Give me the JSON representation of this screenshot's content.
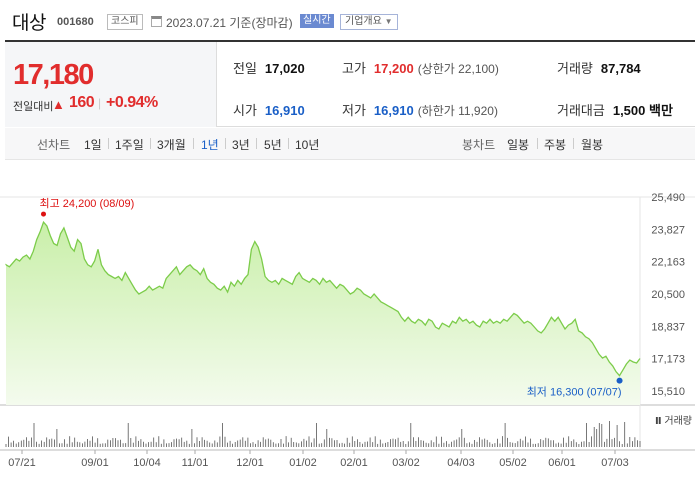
{
  "header": {
    "name": "대상",
    "code": "001680",
    "market": "코스피",
    "date_text": "2023.07.21 기준(장마감)",
    "realtime_label": "실시간",
    "company_info_label": "기업개요"
  },
  "summary": {
    "price": "17,180",
    "change_label": "전일대비",
    "change_value": "160",
    "change_percent": "+0.94%",
    "prev_close_label": "전일",
    "prev_close": "17,020",
    "high_label": "고가",
    "high": "17,200",
    "upper_limit": "(상한가 22,100)",
    "volume_label": "거래량",
    "volume": "87,784",
    "open_label": "시가",
    "open": "16,910",
    "low_label": "저가",
    "low": "16,910",
    "lower_limit": "(하한가 11,920)",
    "amount_label": "거래대금",
    "amount": "1,500 백만"
  },
  "period_bar": {
    "line_chart_label": "선차트",
    "periods": [
      "1일",
      "1주일",
      "3개월",
      "1년",
      "3년",
      "5년",
      "10년"
    ],
    "active_period": "1년",
    "candle_chart_label": "봉차트",
    "candles": [
      "일봉",
      "주봉",
      "월봉"
    ]
  },
  "chart_data": {
    "type": "area",
    "y_ticks": [
      "25,490",
      "23,827",
      "22,163",
      "20,500",
      "18,837",
      "17,173",
      "15,510"
    ],
    "ylim": [
      15510,
      25490
    ],
    "x_tick_labels": [
      "07/21",
      "09/01",
      "10/04",
      "11/01",
      "12/01",
      "01/02",
      "02/01",
      "03/02",
      "04/03",
      "05/02",
      "06/01",
      "07/03"
    ],
    "high_annotation": "최고 24,200 (08/09)",
    "low_annotation": "최저 16,300 (07/07)",
    "volume_label": "거래량",
    "colors": {
      "line": "#7ccc4a",
      "fill_top": "#c9efa9",
      "fill_bottom": "#f4fbee",
      "volume": "#555555",
      "high": "#dd1111",
      "low": "#1a5fc7"
    },
    "series": [
      {
        "values": [
          22000,
          21900,
          22100,
          22300,
          22200,
          22400,
          22500,
          22300,
          22700,
          23300,
          23700,
          24200,
          24000,
          23500,
          23100,
          23000,
          23600,
          23900,
          23400,
          22900,
          22700,
          23300,
          23100,
          22300,
          22000,
          21900,
          22200,
          22800,
          22000,
          21700,
          21500,
          21400,
          21300,
          21400,
          21200,
          21600,
          21300,
          21000,
          20700,
          20500,
          20600,
          20700,
          20900,
          20700,
          20800,
          20900,
          20800,
          21300,
          21500,
          21700,
          21900,
          21500,
          21700,
          21900,
          22000,
          21800,
          21700,
          21500,
          21800,
          21300,
          21100,
          21000,
          20800,
          20700,
          20900,
          20600,
          21100,
          20900,
          21200,
          21000,
          21300,
          21500,
          22800,
          23200,
          22900,
          22300,
          21400,
          21200,
          21100,
          21200,
          21000,
          21300,
          21200,
          21100,
          21000,
          21400,
          21600,
          21300,
          21200,
          21100,
          21300,
          21200,
          21000,
          21300,
          21100,
          21200,
          21000,
          20800,
          21000,
          20900,
          20700,
          20500,
          20600,
          20800,
          20700,
          20500,
          20400,
          20300,
          20500,
          20300,
          20100,
          20000,
          19900,
          19800,
          19700,
          19600,
          19300,
          19100,
          19300,
          19100,
          19000,
          19200,
          19100,
          18900,
          19200,
          19100,
          18800,
          18700,
          19000,
          18900,
          18800,
          19100,
          19000,
          19300,
          19100,
          19200,
          19000,
          19100,
          18900,
          18800,
          19100,
          19000,
          19200,
          19000,
          19100,
          19000,
          19200,
          19100,
          19300,
          19500,
          19400,
          19200,
          19000,
          19100,
          19000,
          18800,
          18600,
          18500,
          18700,
          19000,
          19300,
          19100,
          19300,
          19000,
          18700,
          18900,
          19000,
          19200,
          18600,
          18500,
          18300,
          18200,
          18000,
          17700,
          17400,
          17200,
          17300,
          17000,
          16800,
          16500,
          16300,
          16600,
          16900,
          17100,
          17000,
          16950,
          17180
        ]
      }
    ]
  }
}
